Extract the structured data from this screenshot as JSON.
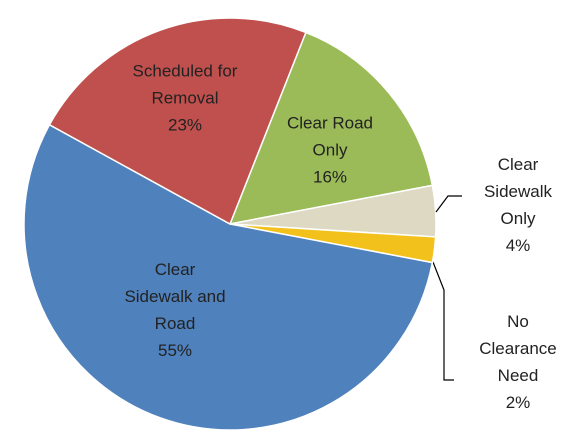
{
  "chart_data": {
    "type": "pie",
    "categories": [
      "Clear Road Only",
      "Clear Sidewalk Only",
      "No Clearance Need",
      "Clear Sidewalk and Road",
      "Scheduled for Removal"
    ],
    "values": [
      16,
      4,
      2,
      55,
      23
    ],
    "value_labels": [
      "16%",
      "4%",
      "2%",
      "55%",
      "23%"
    ],
    "colors": [
      "#9bbb59",
      "#ddd9c3",
      "#f3c11b",
      "#4f81bd",
      "#c0504d"
    ]
  }
}
